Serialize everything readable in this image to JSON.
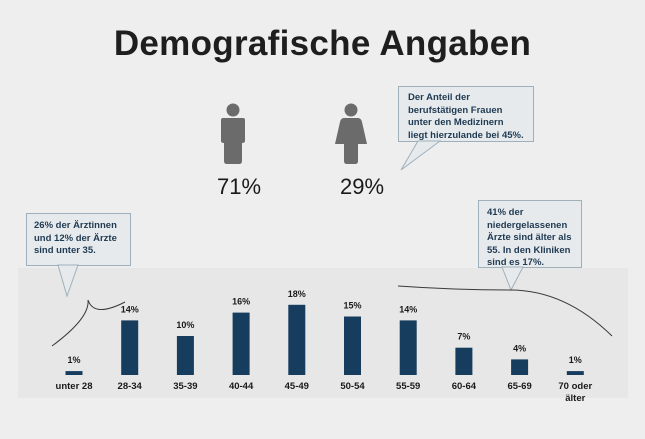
{
  "title": "Demografische Angaben",
  "gender": {
    "male": {
      "icon": "male-person-icon",
      "percent": "71%"
    },
    "female": {
      "icon": "female-person-icon",
      "percent": "29%"
    }
  },
  "callouts": {
    "female_share": "Der Anteil der berufstätigen Frauen unter den Medizinern liegt hierzulande bei 45%.",
    "under_35": "26% der Ärztinnen und 12% der Ärzte sind unter 35.",
    "over_55": "41% der niedergelassenen Ärzte sind älter als 55. In den Kliniken sind es 17%."
  },
  "colors": {
    "bar": "#163c5e",
    "callout_text": "#1f3a52",
    "icon": "#6b6b6b"
  },
  "chart_data": {
    "type": "bar",
    "categories": [
      "unter 28",
      "28-34",
      "35-39",
      "40-44",
      "45-49",
      "50-54",
      "55-59",
      "60-64",
      "65-69",
      "70 oder älter"
    ],
    "category_lines": [
      [
        "unter 28"
      ],
      [
        "28-34"
      ],
      [
        "35-39"
      ],
      [
        "40-44"
      ],
      [
        "45-49"
      ],
      [
        "50-54"
      ],
      [
        "55-59"
      ],
      [
        "60-64"
      ],
      [
        "65-69"
      ],
      [
        "70 oder",
        "älter"
      ]
    ],
    "values": [
      1,
      14,
      10,
      16,
      18,
      15,
      14,
      7,
      4,
      1
    ],
    "value_labels": [
      "1%",
      "14%",
      "10%",
      "16%",
      "18%",
      "15%",
      "14%",
      "7%",
      "4%",
      "1%"
    ],
    "title": "",
    "xlabel": "",
    "ylabel": "",
    "ylim": [
      0,
      20
    ],
    "grid": false
  }
}
